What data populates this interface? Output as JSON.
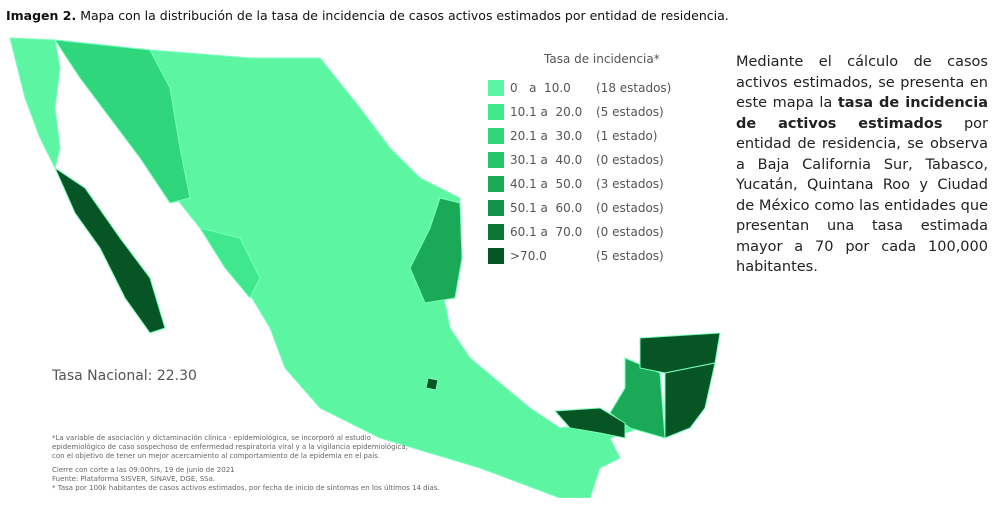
{
  "header": {
    "label": "Imagen 2.",
    "title": "Mapa con la distribución de la tasa de incidencia de casos activos estimados por entidad de residencia."
  },
  "legend": {
    "title": "Tasa de incidencia*",
    "items": [
      {
        "range": "0   a  10.0",
        "count": "(18 estados)",
        "color": "#5cf5a2"
      },
      {
        "range": "10.1 a  20.0",
        "count": "(5 estados)",
        "color": "#3fe88c"
      },
      {
        "range": "20.1 a  30.0",
        "count": "(1 estado)",
        "color": "#2fd67c"
      },
      {
        "range": "30.1 a  40.0",
        "count": "(0 estados)",
        "color": "#25c46c"
      },
      {
        "range": "40.1 a  50.0",
        "count": "(3 estados)",
        "color": "#1aa957"
      },
      {
        "range": "50.1 a  60.0",
        "count": "(0 estados)",
        "color": "#129147"
      },
      {
        "range": "60.1 a  70.0",
        "count": "(0 estados)",
        "color": "#0b7535"
      },
      {
        "range": ">70.0",
        "count": "(5 estados)",
        "color": "#075425"
      }
    ]
  },
  "national": "Tasa Nacional: 22.30",
  "footnotes": [
    "*La variable de asociación y dictaminación clínica - epidemiológica, se incorporó al estudio",
    "epidemiológico de caso sospechoso de enfermedad respiratoria viral y a la vigilancia epidemiológica,",
    "con el objetivo de tener un mejor acercamiento al comportamiento de la epidemia en el país.",
    "Cierre con corte a las 09:00hrs, 19 de junio de 2021",
    "Fuente: Plataforma SISVER, SINAVE, DGE, SSa.",
    "* Tasa por 100k habitantes de casos activos estimados, por fecha de inicio de síntomas en los últimos 14 días."
  ],
  "description": [
    {
      "text": "Mediante el cálculo de casos activos estimados, se presenta en este mapa la ",
      "bold": false
    },
    {
      "text": "tasa de incidencia de activos estimados",
      "bold": true
    },
    {
      "text": " por entidad de residencia, se observa a Baja California Sur, Tabasco, Yucatán, Quintana Roo y Ciudad de México como las entidades que presentan una tasa estimada mayor a 70 por cada 100,000 habitantes.",
      "bold": false
    }
  ]
}
